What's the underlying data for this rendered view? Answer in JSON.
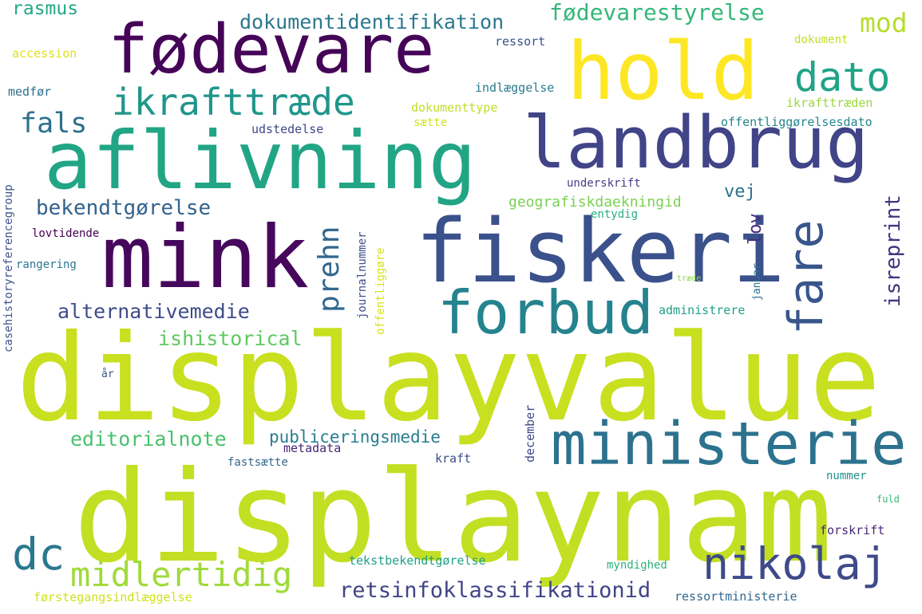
{
  "words": [
    {
      "text": "displayvalue",
      "color": "#c8e020"
    },
    {
      "text": "displaynam",
      "color": "#c2df23"
    },
    {
      "text": "aflivning",
      "color": "#21a585"
    },
    {
      "text": "mink",
      "color": "#46085c"
    },
    {
      "text": "fiskeri",
      "color": "#3b518b"
    },
    {
      "text": "landbrug",
      "color": "#414487"
    },
    {
      "text": "fødevare",
      "color": "#450457"
    },
    {
      "text": "hold",
      "color": "#fde725"
    },
    {
      "text": "ministerie",
      "color": "#2c728e"
    },
    {
      "text": "forbud",
      "color": "#25838e"
    },
    {
      "text": "nikolaj",
      "color": "#3e4a89"
    },
    {
      "text": "ikrafttræde",
      "color": "#1f968b"
    },
    {
      "text": "dato",
      "color": "#20a386"
    },
    {
      "text": "fare",
      "color": "#39568c"
    },
    {
      "text": "midlertidig",
      "color": "#a0da39"
    },
    {
      "text": "dc",
      "color": "#2a788e"
    },
    {
      "text": "mod",
      "color": "#b5de2b"
    },
    {
      "text": "fals",
      "color": "#2d708e"
    },
    {
      "text": "prehn",
      "color": "#31688e"
    },
    {
      "text": "retsinfoklassifikationid",
      "color": "#414487"
    },
    {
      "text": "fødevarestyrelse",
      "color": "#35b779"
    },
    {
      "text": "dokumentidentifikation",
      "color": "#2a788e"
    },
    {
      "text": "bekendtgørelse",
      "color": "#33638d"
    },
    {
      "text": "alternativemedie",
      "color": "#3e4c8a"
    },
    {
      "text": "ishistorical",
      "color": "#5ec962"
    },
    {
      "text": "editorialnote",
      "color": "#4ac16d"
    },
    {
      "text": "publiceringsmedie",
      "color": "#287d8e"
    },
    {
      "text": "isreprint",
      "color": "#46337f"
    },
    {
      "text": "rasmus",
      "color": "#22a884"
    },
    {
      "text": "vej",
      "color": "#2e6f8e"
    },
    {
      "text": "lov",
      "color": "#472d7b"
    },
    {
      "text": "geografiskdaekningid",
      "color": "#7ad151"
    },
    {
      "text": "accession",
      "color": "#dde318"
    },
    {
      "text": "ressort",
      "color": "#3b528b"
    },
    {
      "text": "dokument",
      "color": "#c0df25"
    },
    {
      "text": "medfør",
      "color": "#2c718e"
    },
    {
      "text": "indlæggelse",
      "color": "#287d8e"
    },
    {
      "text": "dokumenttype",
      "color": "#bddf26"
    },
    {
      "text": "ikrafttræden",
      "color": "#9bd93c"
    },
    {
      "text": "sætte",
      "color": "#d2e21b"
    },
    {
      "text": "udstedelse",
      "color": "#3f4788"
    },
    {
      "text": "offentliggørelsesdato",
      "color": "#25858e"
    },
    {
      "text": "underskrift",
      "color": "#433e85"
    },
    {
      "text": "entydig",
      "color": "#29af7f"
    },
    {
      "text": "lovtidende",
      "color": "#440154"
    },
    {
      "text": "rangering",
      "color": "#2a788e"
    },
    {
      "text": "casehistoryreferencegroup",
      "color": "#3b528b"
    },
    {
      "text": "journalnummer",
      "color": "#3d4d8a"
    },
    {
      "text": "offentliggøre",
      "color": "#d8e219"
    },
    {
      "text": "januar",
      "color": "#2c718e"
    },
    {
      "text": "træde",
      "color": "#8ed645"
    },
    {
      "text": "administrere",
      "color": "#1fa187"
    },
    {
      "text": "år",
      "color": "#3b528b"
    },
    {
      "text": "metadata",
      "color": "#482475"
    },
    {
      "text": "fastsætte",
      "color": "#31688e"
    },
    {
      "text": "kraft",
      "color": "#3d4e8a"
    },
    {
      "text": "december",
      "color": "#3f4889"
    },
    {
      "text": "nummer",
      "color": "#21918c"
    },
    {
      "text": "fuld",
      "color": "#3bbb75"
    },
    {
      "text": "forskrift",
      "color": "#482878"
    },
    {
      "text": "tekstbekendtgørelse",
      "color": "#1fa187"
    },
    {
      "text": "myndighed",
      "color": "#2db27d"
    },
    {
      "text": "førstegangsindlæggelse",
      "color": "#d0e11c"
    },
    {
      "text": "ressortministerie",
      "color": "#31688e"
    }
  ]
}
